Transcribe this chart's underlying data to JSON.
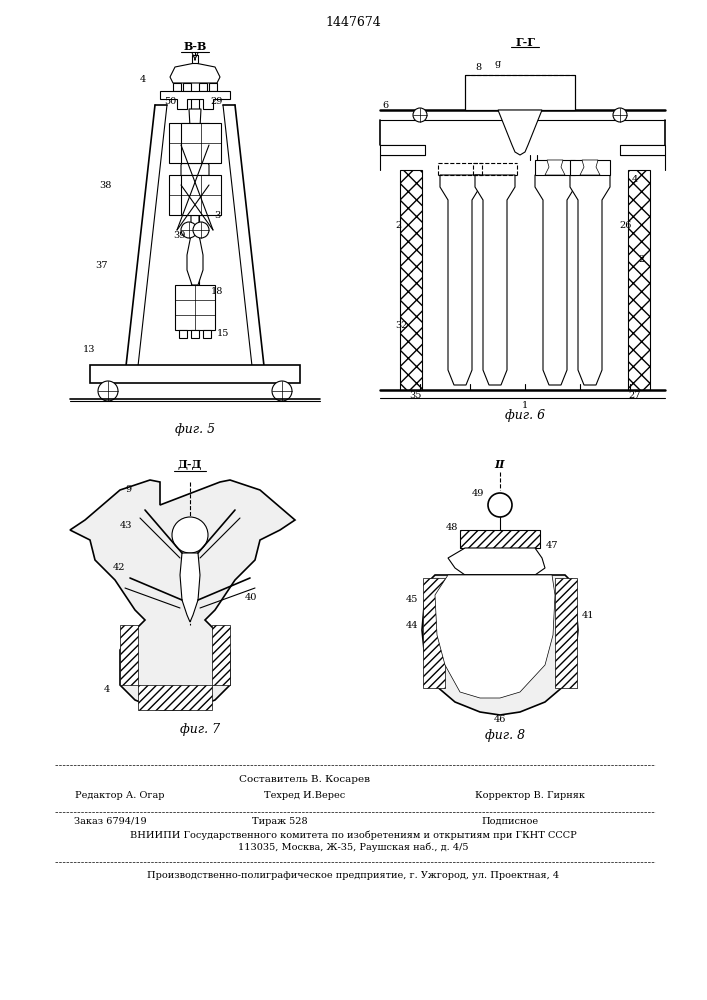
{
  "patent_number": "1447674",
  "background_color": "#ffffff",
  "fig5_label": "фиг. 5",
  "fig6_label": "фиг. 6",
  "fig7_label": "фиг. 7",
  "fig8_label": "фиг. 8",
  "section_vv": "В-В",
  "section_gg": "Г-Г",
  "section_dd": "Д-Д",
  "section_ii": "II",
  "bottom_text": {
    "compositor": "Составитель В. Косарев",
    "editor_label": "Редактор А. Огар",
    "techred_label": "Техред И.Верес",
    "corrector_label": "Корректор В. Гирняк",
    "order": "Заказ 6794/19",
    "tirage": "Тираж 528",
    "subscription": "Подписное",
    "vniip_line1": "ВНИИПИ Государственного комитета по изобретениям и открытиям при ГКНТ СССР",
    "vniip_line2": "113035, Москва, Ж-35, Раушская наб., д. 4/5",
    "print_line": "Производственно-полиграфическое предприятие, г. Ужгород, ул. Проектная, 4"
  }
}
